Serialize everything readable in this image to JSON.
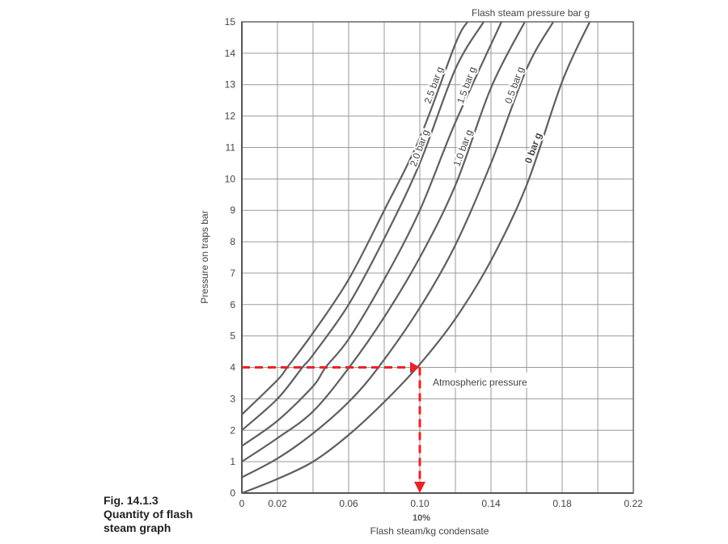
{
  "caption": {
    "line1": "Fig. 14.1.3",
    "line2": "Quantity of flash",
    "line3": "steam graph"
  },
  "chart_data": {
    "type": "line",
    "title": "Flash steam pressure bar g",
    "xlabel": "Flash steam/kg condensate",
    "ylabel": "Pressure on traps bar",
    "xlim": [
      0,
      0.22
    ],
    "ylim": [
      0,
      15
    ],
    "grid": true,
    "xticks": [
      0,
      0.02,
      0.04,
      0.06,
      0.08,
      0.1,
      0.12,
      0.14,
      0.16,
      0.18,
      0.2,
      0.22
    ],
    "xtick_labels": [
      {
        "v": 0,
        "t": "0"
      },
      {
        "v": 0.02,
        "t": "0.02"
      },
      {
        "v": 0.06,
        "t": "0.06"
      },
      {
        "v": 0.1,
        "t": "0.10"
      },
      {
        "v": 0.14,
        "t": "0.14"
      },
      {
        "v": 0.18,
        "t": "0.18"
      },
      {
        "v": 0.22,
        "t": "0.22"
      }
    ],
    "yticks": [
      0,
      1,
      2,
      3,
      4,
      5,
      6,
      7,
      8,
      9,
      10,
      11,
      12,
      13,
      14,
      15
    ],
    "series": [
      {
        "name": "2.5 bar g",
        "bold": false,
        "x": [
          0,
          0.02,
          0.0255,
          0.04,
          0.06,
          0.08,
          0.1,
          0.12,
          0.1268
        ],
        "y": [
          2.5,
          3.6,
          4,
          5.1,
          6.8,
          9.0,
          11.3,
          14.3,
          15
        ]
      },
      {
        "name": "2.0 bar g",
        "bold": false,
        "x": [
          0,
          0.02,
          0.034,
          0.04,
          0.06,
          0.08,
          0.1,
          0.12,
          0.1359
        ],
        "y": [
          2.0,
          3.0,
          4,
          4.4,
          6.0,
          8.1,
          10.5,
          13.5,
          15
        ]
      },
      {
        "name": "1.5 bar g",
        "bold": false,
        "x": [
          0,
          0.02,
          0.04,
          0.047,
          0.06,
          0.08,
          0.1,
          0.12,
          0.1459
        ],
        "y": [
          1.5,
          2.3,
          3.4,
          4,
          4.9,
          6.8,
          9.0,
          11.8,
          15
        ]
      },
      {
        "name": "1.0 bar g",
        "bold": false,
        "x": [
          0,
          0.02,
          0.04,
          0.0603,
          0.08,
          0.1,
          0.12,
          0.14,
          0.159
        ],
        "y": [
          1.0,
          1.75,
          2.6,
          4,
          5.6,
          7.5,
          9.8,
          12.9,
          15
        ]
      },
      {
        "name": "0.5 bar g",
        "bold": false,
        "x": [
          0,
          0.02,
          0.04,
          0.06,
          0.0767,
          0.1,
          0.12,
          0.14,
          0.16,
          0.175
        ],
        "y": [
          0.5,
          1.1,
          1.9,
          2.9,
          4,
          5.9,
          7.9,
          10.5,
          13.5,
          15
        ]
      },
      {
        "name": "0 bar g",
        "bold": true,
        "x": [
          0,
          0.02,
          0.04,
          0.06,
          0.08,
          0.1,
          0.12,
          0.14,
          0.16,
          0.18,
          0.1955
        ],
        "y": [
          0,
          0.45,
          1.0,
          1.85,
          2.9,
          4.1,
          5.55,
          7.4,
          9.8,
          13.1,
          15
        ]
      }
    ],
    "annotations": {
      "example_pressure": 4,
      "example_result": 0.1,
      "result_label": "10%",
      "atmospheric_label": "Atmospheric pressure",
      "arrow_color": "#e8232a"
    },
    "line_color": "#5f5f61",
    "grid_color": "#9a9a9a"
  }
}
